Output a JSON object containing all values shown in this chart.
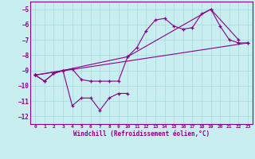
{
  "xlabel": "Windchill (Refroidissement éolien,°C)",
  "bg_color": "#c8eef0",
  "line_color": "#880088",
  "grid_color": "#a8d8dc",
  "xlim": [
    -0.5,
    23.5
  ],
  "ylim": [
    -12.5,
    -4.5
  ],
  "xticks": [
    0,
    1,
    2,
    3,
    4,
    5,
    6,
    7,
    8,
    9,
    10,
    11,
    12,
    13,
    14,
    15,
    16,
    17,
    18,
    19,
    20,
    21,
    22,
    23
  ],
  "yticks": [
    -12,
    -11,
    -10,
    -9,
    -8,
    -7,
    -6,
    -5
  ],
  "series": [
    {
      "x": [
        0,
        1,
        2,
        3,
        4,
        5,
        6,
        7,
        8,
        9,
        10
      ],
      "y": [
        -9.3,
        -9.7,
        -9.2,
        -9.0,
        -11.3,
        -10.8,
        -10.8,
        -11.6,
        -10.8,
        -10.5,
        -10.5
      ]
    },
    {
      "x": [
        0,
        1,
        2,
        3,
        4,
        5,
        6,
        7,
        8,
        9,
        10,
        11,
        12,
        13,
        14,
        15,
        16,
        17,
        18,
        19,
        20,
        21,
        22,
        23
      ],
      "y": [
        -9.3,
        -9.7,
        -9.2,
        -9.0,
        -8.9,
        -9.6,
        -9.7,
        -9.7,
        -9.7,
        -9.7,
        -8.1,
        -7.5,
        -6.4,
        -5.7,
        -5.6,
        -6.1,
        -6.3,
        -6.2,
        -5.3,
        -5.0,
        -6.1,
        -7.0,
        -7.2,
        -7.2
      ]
    },
    {
      "x": [
        0,
        23
      ],
      "y": [
        -9.3,
        -7.2
      ]
    },
    {
      "x": [
        0,
        3,
        10,
        19,
        22
      ],
      "y": [
        -9.3,
        -9.0,
        -8.1,
        -5.0,
        -7.0
      ]
    }
  ]
}
